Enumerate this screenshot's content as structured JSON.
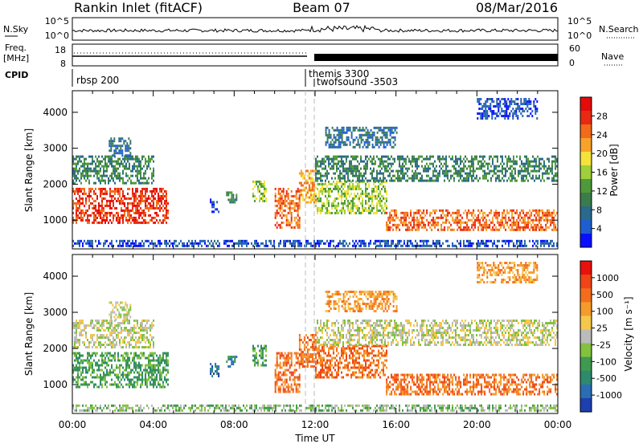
{
  "header": {
    "station": "Rankin Inlet (fitACF)",
    "beam": "Beam 07",
    "date": "08/Mar/2016"
  },
  "nsky_panel": {
    "left_label": "N.Sky",
    "right_label": "N.Search",
    "left_ticks": [
      "10^5",
      "10^0"
    ],
    "right_ticks": [
      "10^5",
      "10^0"
    ]
  },
  "freq_panel": {
    "left_label_1": "Freq.",
    "left_label_2": "[MHz]",
    "right_label": "Nave",
    "left_ticks": [
      "18",
      "8"
    ],
    "right_ticks": [
      "60",
      "0"
    ]
  },
  "cpid_panel": {
    "label": "CPID",
    "programs": [
      {
        "name": "rbsp 200",
        "start_hour": 0
      },
      {
        "name": "themis 3300",
        "start_hour": 11.5
      },
      {
        "name": "twofsound -3503",
        "start_hour": 12.0
      }
    ]
  },
  "chart_data": [
    {
      "type": "heatmap",
      "quantity": "Power",
      "ylabel": "Slant Range [km]",
      "xlabel": "Time UT",
      "xlim": [
        0,
        24
      ],
      "ylim": [
        200,
        4600
      ],
      "yticks": [
        "1000",
        "2000",
        "3000",
        "4000"
      ],
      "xticks": [
        "00:00",
        "04:00",
        "08:00",
        "12:00",
        "16:00",
        "20:00",
        "00:00"
      ],
      "colorbar": {
        "label": "Power [dB]",
        "ticks": [
          "4",
          "8",
          "12",
          "16",
          "20",
          "24",
          "28"
        ],
        "colors": [
          "#0a10ff",
          "#1e5fd0",
          "#2a6a8c",
          "#3a7d4a",
          "#4e9a3a",
          "#9fcf3b",
          "#f5e23a",
          "#f7a32a",
          "#f36a1a",
          "#e82a12",
          "#e40b0b"
        ]
      },
      "regions": [
        {
          "t0": 0.0,
          "t1": 4.7,
          "r0": 900,
          "r1": 1900,
          "level": 9
        },
        {
          "t0": 0.0,
          "t1": 4.0,
          "r0": 2000,
          "r1": 2800,
          "level": 3
        },
        {
          "t0": 1.8,
          "t1": 2.9,
          "r0": 2800,
          "r1": 3300,
          "level": 2
        },
        {
          "t0": 6.8,
          "t1": 7.2,
          "r0": 1200,
          "r1": 1600,
          "level": 1
        },
        {
          "t0": 7.6,
          "t1": 8.1,
          "r0": 1500,
          "r1": 1800,
          "level": 3
        },
        {
          "t0": 8.9,
          "t1": 9.6,
          "r0": 1500,
          "r1": 2100,
          "level": 5
        },
        {
          "t0": 10.0,
          "t1": 11.2,
          "r0": 800,
          "r1": 1900,
          "level": 8
        },
        {
          "t0": 11.2,
          "t1": 12.0,
          "r0": 1500,
          "r1": 2400,
          "level": 7
        },
        {
          "t0": 12.0,
          "t1": 15.5,
          "r0": 1200,
          "r1": 2100,
          "level": 5
        },
        {
          "t0": 12.0,
          "t1": 24.0,
          "r0": 2100,
          "r1": 2800,
          "level": 3
        },
        {
          "t0": 15.5,
          "t1": 24.0,
          "r0": 700,
          "r1": 1300,
          "level": 8
        },
        {
          "t0": 12.5,
          "t1": 16.0,
          "r0": 3000,
          "r1": 3600,
          "level": 2
        },
        {
          "t0": 20.0,
          "t1": 23.0,
          "r0": 3800,
          "r1": 4400,
          "level": 1
        },
        {
          "t0": 0.0,
          "t1": 24.0,
          "r0": 250,
          "r1": 450,
          "level": 1
        }
      ]
    },
    {
      "type": "heatmap",
      "quantity": "Velocity",
      "ylabel": "Slant Range [km]",
      "xlabel": "Time UT",
      "xlim": [
        0,
        24
      ],
      "ylim": [
        200,
        4600
      ],
      "yticks": [
        "1000",
        "2000",
        "3000",
        "4000"
      ],
      "xticks": [
        "00:00",
        "04:00",
        "08:00",
        "12:00",
        "16:00",
        "20:00",
        "00:00"
      ],
      "colorbar": {
        "label": "Velocity [m s⁻¹]",
        "ticks": [
          "1000",
          "500",
          "100",
          "25",
          "-25",
          "-100",
          "-500",
          "-1000"
        ],
        "colors": [
          "#1d3fb0",
          "#2a6db5",
          "#2f8a6d",
          "#3f9a4f",
          "#82c23f",
          "#bbbbbb",
          "#f5c74a",
          "#f59b2a",
          "#f36d1c",
          "#ef4516",
          "#e8110c"
        ]
      },
      "regions": [
        {
          "t0": 0.0,
          "t1": 4.7,
          "r0": 900,
          "r1": 1900,
          "level": 3
        },
        {
          "t0": 0.0,
          "t1": 4.0,
          "r0": 2000,
          "r1": 2800,
          "level": 5
        },
        {
          "t0": 1.8,
          "t1": 2.9,
          "r0": 2800,
          "r1": 3300,
          "level": 5
        },
        {
          "t0": 6.8,
          "t1": 7.2,
          "r0": 1200,
          "r1": 1600,
          "level": 1
        },
        {
          "t0": 7.6,
          "t1": 8.1,
          "r0": 1500,
          "r1": 1800,
          "level": 2
        },
        {
          "t0": 8.9,
          "t1": 9.6,
          "r0": 1500,
          "r1": 2100,
          "level": 3
        },
        {
          "t0": 10.0,
          "t1": 11.2,
          "r0": 800,
          "r1": 1900,
          "level": 8
        },
        {
          "t0": 11.2,
          "t1": 12.0,
          "r0": 1500,
          "r1": 2400,
          "level": 8
        },
        {
          "t0": 12.0,
          "t1": 15.5,
          "r0": 1200,
          "r1": 2100,
          "level": 8
        },
        {
          "t0": 12.0,
          "t1": 24.0,
          "r0": 2100,
          "r1": 2800,
          "level": 5
        },
        {
          "t0": 15.5,
          "t1": 24.0,
          "r0": 700,
          "r1": 1300,
          "level": 8
        },
        {
          "t0": 12.5,
          "t1": 16.0,
          "r0": 3000,
          "r1": 3600,
          "level": 7
        },
        {
          "t0": 20.0,
          "t1": 23.0,
          "r0": 3800,
          "r1": 4400,
          "level": 7
        },
        {
          "t0": 0.0,
          "t1": 24.0,
          "r0": 250,
          "r1": 450,
          "level": 4
        }
      ]
    }
  ]
}
